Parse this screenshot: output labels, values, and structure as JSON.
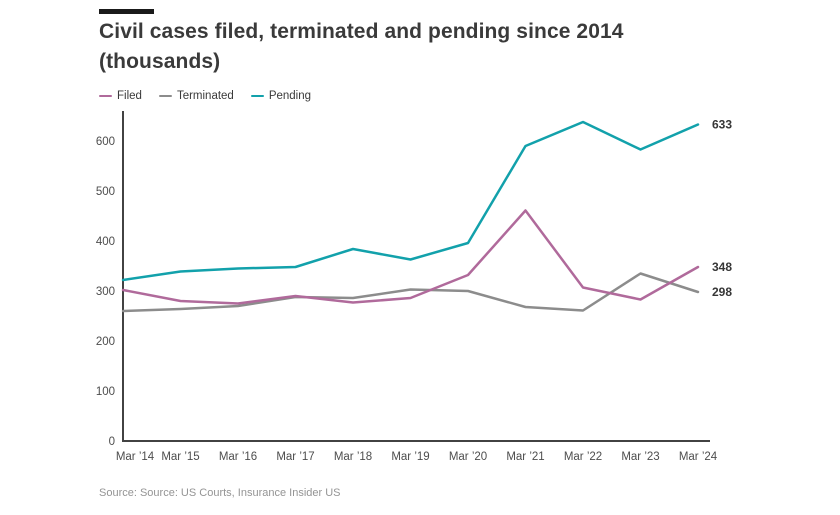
{
  "title": "Civil cases filed, terminated and pending since 2014 (thousands)",
  "legend": [
    {
      "label": "Filed",
      "color": "#b06a9b"
    },
    {
      "label": "Terminated",
      "color": "#8c8c8c"
    },
    {
      "label": "Pending",
      "color": "#12a1ab"
    }
  ],
  "source": "Source: Source: US Courts, Insurance Insider US",
  "colors": {
    "axis": "#424242",
    "tick_label": "#4d4d4d",
    "end_label": "#363636",
    "title": "#3a3a3a"
  },
  "chart_data": {
    "type": "line",
    "categories": [
      "Mar ’14",
      "Mar ’15",
      "Mar ’16",
      "Mar ’17",
      "Mar ’18",
      "Mar ’19",
      "Mar ’20",
      "Mar ’21",
      "Mar ’22",
      "Mar ’23",
      "Mar ’24"
    ],
    "series": [
      {
        "name": "Filed",
        "color": "#b06a9b",
        "values": [
          302,
          280,
          275,
          290,
          277,
          286,
          332,
          461,
          307,
          283,
          348
        ],
        "end_label": "348"
      },
      {
        "name": "Terminated",
        "color": "#8c8c8c",
        "values": [
          260,
          264,
          270,
          288,
          286,
          303,
          300,
          268,
          261,
          335,
          298
        ],
        "end_label": "298"
      },
      {
        "name": "Pending",
        "color": "#12a1ab",
        "values": [
          322,
          339,
          345,
          348,
          384,
          363,
          396,
          590,
          638,
          583,
          633
        ],
        "end_label": "633"
      }
    ],
    "draw_order": [
      "Terminated",
      "Filed",
      "Pending"
    ],
    "title": "Civil cases filed, terminated and pending since 2014 (thousands)",
    "xlabel": "",
    "ylabel": "",
    "ylim": [
      0,
      660
    ],
    "yticks": [
      0,
      100,
      200,
      300,
      400,
      500,
      600
    ],
    "grid": false,
    "legend_position": "top-left",
    "end_labels_shown": true
  }
}
